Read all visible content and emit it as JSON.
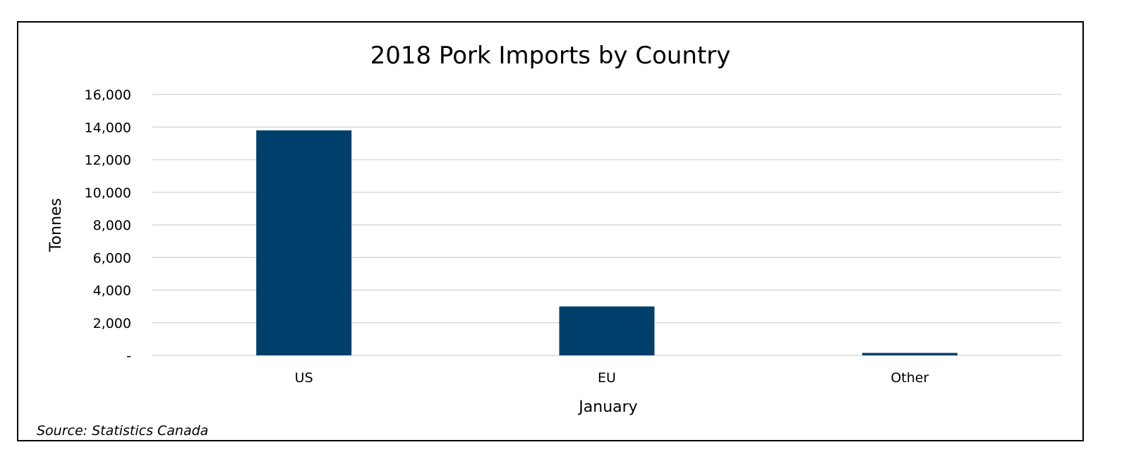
{
  "chart_data": {
    "type": "bar",
    "title": "2018 Pork Imports by Country",
    "xlabel": "January",
    "ylabel": "Tonnes",
    "categories": [
      "US",
      "EU",
      "Other"
    ],
    "values": [
      13800,
      3000,
      150
    ],
    "ylim": [
      0,
      16000
    ],
    "yticks": [
      0,
      2000,
      4000,
      6000,
      8000,
      10000,
      12000,
      14000,
      16000
    ],
    "ytick_labels": [
      "-",
      "2,000",
      "4,000",
      "6,000",
      "8,000",
      "10,000",
      "12,000",
      "14,000",
      "16,000"
    ],
    "grid": true,
    "legend": "none",
    "bar_color": "#003f6b",
    "source": "Source: Statistics Canada"
  }
}
